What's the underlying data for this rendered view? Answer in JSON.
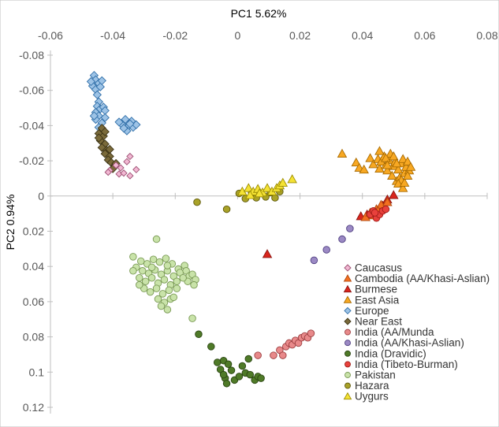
{
  "chart_data": {
    "type": "scatter",
    "xlabel": "PC1 5.62%",
    "ylabel": "PC2 0.94%",
    "xlim": [
      -0.06,
      0.08
    ],
    "ylim": [
      -0.08,
      0.12
    ],
    "y_inverted": true,
    "x_axis_position": "top",
    "grid": false,
    "legend_position": "bottom-right",
    "x_ticks": [
      -0.06,
      -0.04,
      -0.02,
      0,
      0.02,
      0.04,
      0.06,
      0.08
    ],
    "x_tick_labels": [
      "-0.06",
      "-0.04",
      "-0.02",
      "0",
      "0.02",
      "0.04",
      "0.06",
      "0.08"
    ],
    "y_ticks": [
      -0.08,
      -0.06,
      -0.04,
      -0.02,
      0,
      0.02,
      0.04,
      0.06,
      0.08,
      0.1,
      0.12
    ],
    "y_tick_labels": [
      "-0.08",
      "-0.06",
      "-0.04",
      "-0.02",
      "0",
      "0.02",
      "0.04",
      "0.06",
      "0.08",
      "0.1",
      "0.12"
    ],
    "series": [
      {
        "name": "Caucasus",
        "marker": "diamond-small",
        "color": "#f2b8d3",
        "stroke": "#9c4f72",
        "points": [
          [
            -0.0345,
            -0.0225
          ],
          [
            -0.0355,
            -0.0195
          ],
          [
            -0.0375,
            -0.016
          ],
          [
            -0.039,
            -0.0175
          ],
          [
            -0.041,
            -0.0145
          ],
          [
            -0.038,
            -0.0125
          ],
          [
            -0.0365,
            -0.013
          ],
          [
            -0.0325,
            -0.015
          ],
          [
            -0.0345,
            -0.0115
          ],
          [
            -0.0415,
            -0.0135
          ]
        ]
      },
      {
        "name": "Cambodia (AA/Khasi-Aslian)",
        "marker": "triangle",
        "color": "#f36f21",
        "stroke": "#b04a10",
        "points": [
          [
            0.0445,
            0.0075
          ],
          [
            0.0435,
            0.011
          ],
          [
            0.046,
            0.005
          ],
          [
            0.041,
            0.012
          ],
          [
            0.048,
            0.0035
          ],
          [
            0.0425,
            0.0095
          ],
          [
            0.045,
            0.0085
          ]
        ]
      },
      {
        "name": "Burmese",
        "marker": "triangle",
        "color": "#d9251c",
        "stroke": "#8a1410",
        "points": [
          [
            0.0095,
            0.033
          ],
          [
            0.048,
            0.002
          ],
          [
            0.0465,
            0.0055
          ],
          [
            0.05,
            -0.0005
          ],
          [
            0.0395,
            0.0115
          ],
          [
            0.0415,
            0.0105
          ]
        ]
      },
      {
        "name": "East Asia",
        "marker": "triangle",
        "color": "#f7a823",
        "stroke": "#a86a00",
        "points": [
          [
            0.0335,
            -0.024
          ],
          [
            0.038,
            -0.019
          ],
          [
            0.039,
            -0.016
          ],
          [
            0.0405,
            -0.015
          ],
          [
            0.0425,
            -0.0215
          ],
          [
            0.0435,
            -0.018
          ],
          [
            0.045,
            -0.021
          ],
          [
            0.0455,
            -0.0155
          ],
          [
            0.046,
            -0.0195
          ],
          [
            0.047,
            -0.0225
          ],
          [
            0.0475,
            -0.0175
          ],
          [
            0.048,
            -0.0145
          ],
          [
            0.0485,
            -0.0205
          ],
          [
            0.049,
            -0.024
          ],
          [
            0.0495,
            -0.0115
          ],
          [
            0.05,
            -0.017
          ],
          [
            0.0505,
            -0.0195
          ],
          [
            0.051,
            -0.0085
          ],
          [
            0.0515,
            -0.015
          ],
          [
            0.052,
            -0.0105
          ],
          [
            0.0525,
            -0.0185
          ],
          [
            0.053,
            -0.021
          ],
          [
            0.0535,
            -0.013
          ],
          [
            0.054,
            -0.0165
          ],
          [
            0.0545,
            -0.0195
          ],
          [
            0.055,
            -0.0145
          ],
          [
            0.0555,
            -0.0165
          ],
          [
            0.0525,
            -0.009
          ],
          [
            0.0515,
            -0.007
          ],
          [
            0.053,
            -0.0045
          ],
          [
            0.0535,
            -0.0075
          ],
          [
            0.0455,
            -0.0255
          ],
          [
            0.0475,
            -0.0215
          ],
          [
            0.05,
            -0.0225
          ],
          [
            0.0545,
            -0.0115
          ],
          [
            0.051,
            -0.0185
          ],
          [
            0.048,
            -0.0175
          ]
        ]
      },
      {
        "name": "Europe",
        "marker": "diamond",
        "color": "#9dc3e6",
        "stroke": "#2f6ea8",
        "points": [
          [
            -0.046,
            -0.0685
          ],
          [
            -0.0455,
            -0.066
          ],
          [
            -0.0445,
            -0.064
          ],
          [
            -0.0465,
            -0.0625
          ],
          [
            -0.0455,
            -0.0605
          ],
          [
            -0.044,
            -0.062
          ],
          [
            -0.045,
            -0.0575
          ],
          [
            -0.047,
            -0.065
          ],
          [
            -0.0435,
            -0.0655
          ],
          [
            -0.0445,
            -0.0535
          ],
          [
            -0.045,
            -0.051
          ],
          [
            -0.044,
            -0.0495
          ],
          [
            -0.0455,
            -0.0475
          ],
          [
            -0.043,
            -0.0505
          ],
          [
            -0.0445,
            -0.0455
          ],
          [
            -0.0455,
            -0.0435
          ],
          [
            -0.0425,
            -0.0485
          ],
          [
            -0.0435,
            -0.0415
          ],
          [
            -0.0445,
            -0.039
          ],
          [
            -0.0425,
            -0.0445
          ],
          [
            -0.046,
            -0.0455
          ],
          [
            -0.036,
            -0.0435
          ],
          [
            -0.037,
            -0.0405
          ],
          [
            -0.035,
            -0.0395
          ],
          [
            -0.034,
            -0.0425
          ],
          [
            -0.0335,
            -0.039
          ],
          [
            -0.0355,
            -0.037
          ],
          [
            -0.0325,
            -0.0405
          ],
          [
            -0.038,
            -0.042
          ],
          [
            -0.0345,
            -0.041
          ],
          [
            -0.0365,
            -0.0385
          ]
        ]
      },
      {
        "name": "Near East",
        "marker": "diamond",
        "color": "#7a6a3a",
        "stroke": "#3d3416",
        "points": [
          [
            -0.0435,
            -0.0385
          ],
          [
            -0.0445,
            -0.0355
          ],
          [
            -0.043,
            -0.034
          ],
          [
            -0.044,
            -0.0315
          ],
          [
            -0.0425,
            -0.0295
          ],
          [
            -0.0435,
            -0.0275
          ],
          [
            -0.042,
            -0.026
          ],
          [
            -0.0425,
            -0.024
          ],
          [
            -0.041,
            -0.0225
          ],
          [
            -0.0415,
            -0.0205
          ],
          [
            -0.0405,
            -0.019
          ],
          [
            -0.0395,
            -0.017
          ],
          [
            -0.04,
            -0.0155
          ],
          [
            -0.039,
            -0.0185
          ],
          [
            -0.041,
            -0.0265
          ],
          [
            -0.0445,
            -0.033
          ],
          [
            -0.0425,
            -0.0365
          ]
        ]
      },
      {
        "name": "India (AA/Munda",
        "marker": "circle",
        "color": "#e8898a",
        "stroke": "#9c3f41",
        "points": [
          [
            0.0065,
            0.0905
          ],
          [
            0.0115,
            0.0905
          ],
          [
            0.0135,
            0.0875
          ],
          [
            0.0145,
            0.0905
          ],
          [
            0.0155,
            0.0855
          ],
          [
            0.0165,
            0.0835
          ],
          [
            0.0175,
            0.0845
          ],
          [
            0.0185,
            0.082
          ],
          [
            0.0195,
            0.0835
          ],
          [
            0.0205,
            0.0805
          ],
          [
            0.0215,
            0.0795
          ],
          [
            0.0225,
            0.0805
          ],
          [
            0.0235,
            0.078
          ]
        ]
      },
      {
        "name": "India (AA/Khasi-Aslian)",
        "marker": "circle",
        "color": "#9b89c4",
        "stroke": "#4f3f80",
        "points": [
          [
            0.0245,
            0.0365
          ],
          [
            0.0285,
            0.0305
          ],
          [
            0.0335,
            0.0245
          ],
          [
            0.036,
            0.0185
          ]
        ]
      },
      {
        "name": "India (Dravidic)",
        "marker": "circle",
        "color": "#4f7a28",
        "stroke": "#2a4512",
        "points": [
          [
            -0.0125,
            0.0785
          ],
          [
            -0.0085,
            0.0855
          ],
          [
            -0.0065,
            0.0945
          ],
          [
            -0.0055,
            0.0985
          ],
          [
            -0.0045,
            0.0935
          ],
          [
            -0.004,
            0.1035
          ],
          [
            -0.0035,
            0.1065
          ],
          [
            -0.003,
            0.0955
          ],
          [
            -0.002,
            0.099
          ],
          [
            -0.001,
            0.1045
          ],
          [
            0.0005,
            0.1025
          ],
          [
            0.0015,
            0.0965
          ],
          [
            0.0025,
            0.1005
          ],
          [
            0.0035,
            0.0925
          ],
          [
            0.004,
            0.1015
          ],
          [
            0.0055,
            0.1045
          ],
          [
            0.0065,
            0.1025
          ],
          [
            0.0075,
            0.1035
          ],
          [
            -0.0045,
            0.1015
          ]
        ]
      },
      {
        "name": "India (Tibeto-Burman)",
        "marker": "circle",
        "color": "#e8413c",
        "stroke": "#a01c18",
        "points": [
          [
            0.0425,
            0.0105
          ],
          [
            0.0435,
            0.0085
          ],
          [
            0.0445,
            0.0125
          ],
          [
            0.0455,
            0.0105
          ],
          [
            0.0465,
            0.0085
          ],
          [
            0.044,
            0.0095
          ],
          [
            0.0475,
            0.0075
          ]
        ]
      },
      {
        "name": "Pakistan",
        "marker": "circle",
        "color": "#c9e3a9",
        "stroke": "#7a9a55",
        "points": [
          [
            -0.026,
            0.0245
          ],
          [
            -0.0335,
            0.0345
          ],
          [
            -0.031,
            0.037
          ],
          [
            -0.029,
            0.0385
          ],
          [
            -0.027,
            0.036
          ],
          [
            -0.025,
            0.0375
          ],
          [
            -0.023,
            0.0355
          ],
          [
            -0.021,
            0.0385
          ],
          [
            -0.019,
            0.0415
          ],
          [
            -0.017,
            0.0395
          ],
          [
            -0.0325,
            0.0405
          ],
          [
            -0.0305,
            0.0425
          ],
          [
            -0.0285,
            0.044
          ],
          [
            -0.0265,
            0.042
          ],
          [
            -0.0245,
            0.0445
          ],
          [
            -0.0225,
            0.0425
          ],
          [
            -0.0205,
            0.0455
          ],
          [
            -0.0185,
            0.0435
          ],
          [
            -0.0315,
            0.0465
          ],
          [
            -0.0295,
            0.0485
          ],
          [
            -0.0275,
            0.0465
          ],
          [
            -0.0255,
            0.0495
          ],
          [
            -0.0235,
            0.0475
          ],
          [
            -0.0215,
            0.0505
          ],
          [
            -0.0195,
            0.0485
          ],
          [
            -0.03,
            0.0525
          ],
          [
            -0.028,
            0.0545
          ],
          [
            -0.026,
            0.0525
          ],
          [
            -0.024,
            0.0555
          ],
          [
            -0.022,
            0.0535
          ],
          [
            -0.0255,
            0.0585
          ],
          [
            -0.0235,
            0.0605
          ],
          [
            -0.0215,
            0.0585
          ],
          [
            -0.0245,
            0.0625
          ],
          [
            -0.0225,
            0.0645
          ],
          [
            -0.0165,
            0.0425
          ],
          [
            -0.0155,
            0.0455
          ],
          [
            -0.0145,
            0.0445
          ],
          [
            -0.0135,
            0.0475
          ],
          [
            -0.014,
            0.0505
          ],
          [
            -0.016,
            0.0485
          ],
          [
            -0.0175,
            0.0465
          ],
          [
            -0.0145,
            0.0695
          ],
          [
            -0.0335,
            0.0425
          ],
          [
            -0.0275,
            0.0405
          ],
          [
            -0.0225,
            0.0395
          ],
          [
            -0.0205,
            0.0575
          ],
          [
            -0.0195,
            0.0525
          ],
          [
            -0.0315,
            0.0505
          ]
        ]
      },
      {
        "name": "Hazara",
        "marker": "circle",
        "color": "#a9a228",
        "stroke": "#5f5a0d",
        "points": [
          [
            -0.013,
            0.0035
          ],
          [
            -0.0035,
            0.0075
          ],
          [
            0.0005,
            -0.0015
          ],
          [
            0.0025,
            0.0015
          ],
          [
            0.0045,
            -0.002
          ],
          [
            0.006,
            0.001
          ],
          [
            0.0075,
            -0.0015
          ],
          [
            0.009,
            0.0005
          ],
          [
            0.0105,
            -0.002
          ],
          [
            0.012,
            0.001
          ],
          [
            0.0135,
            -0.0025
          ]
        ]
      },
      {
        "name": "Uygurs",
        "marker": "triangle",
        "color": "#f4e234",
        "stroke": "#9c8c00",
        "points": [
          [
            0.0015,
            -0.0025
          ],
          [
            0.0035,
            -0.0045
          ],
          [
            0.005,
            -0.0025
          ],
          [
            0.0065,
            -0.004
          ],
          [
            0.008,
            -0.002
          ],
          [
            0.0095,
            -0.0045
          ],
          [
            0.011,
            -0.0025
          ],
          [
            0.0125,
            -0.0045
          ],
          [
            0.0135,
            -0.006
          ],
          [
            0.0145,
            -0.0075
          ],
          [
            0.0175,
            -0.0095
          ],
          [
            0.004,
            -0.0005
          ],
          [
            0.007,
            -0.0015
          ]
        ]
      }
    ]
  }
}
